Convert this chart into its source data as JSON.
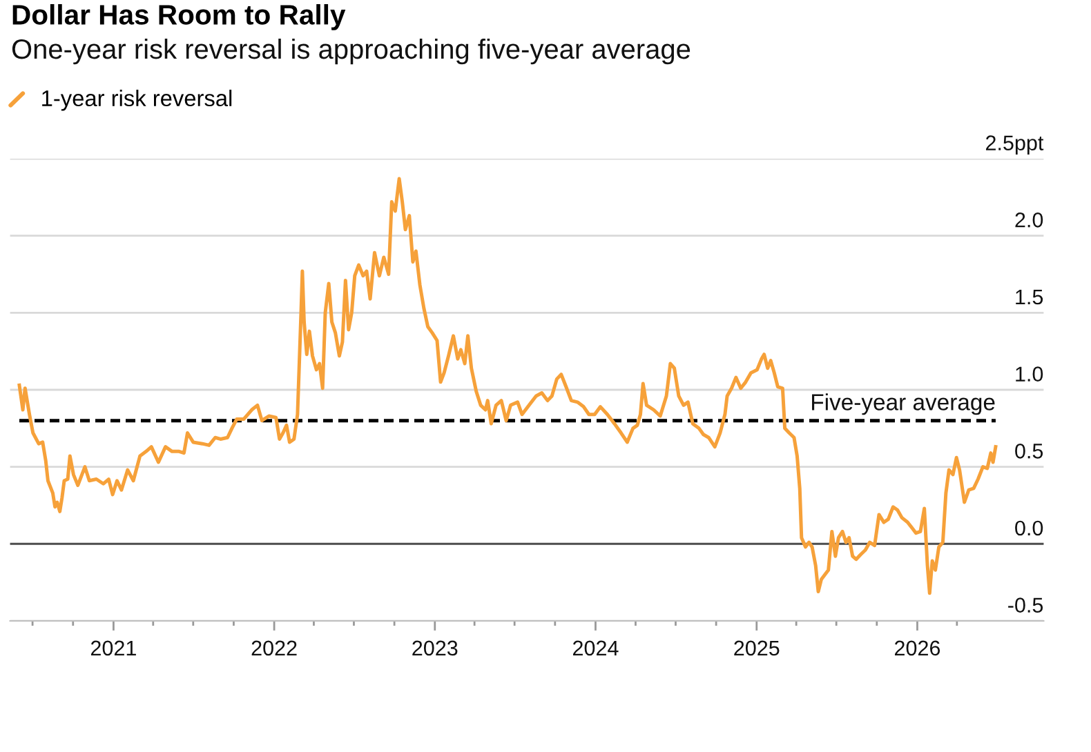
{
  "chart_data": {
    "type": "line",
    "title": "Dollar Has Room to Rally",
    "subtitle": "One-year risk reversal is approaching five-year average",
    "series": [
      {
        "name": "1-year risk reversal",
        "color": "#f6a13a",
        "x": [
          "2020-06-01",
          "2020-06-09",
          "2020-06-14",
          "2020-06-24",
          "2020-07-02",
          "2020-07-15",
          "2020-07-24",
          "2020-07-31",
          "2020-08-05",
          "2020-08-16",
          "2020-08-21",
          "2020-08-26",
          "2020-09-01",
          "2020-09-06",
          "2020-09-11",
          "2020-09-19",
          "2020-09-24",
          "2020-10-02",
          "2020-10-12",
          "2020-10-28",
          "2020-11-07",
          "2020-11-23",
          "2020-12-09",
          "2020-12-21",
          "2020-12-30",
          "2021-01-09",
          "2021-01-19",
          "2021-02-02",
          "2021-02-15",
          "2021-03-02",
          "2021-03-16",
          "2021-03-28",
          "2021-04-13",
          "2021-04-29",
          "2021-05-14",
          "2021-05-30",
          "2021-06-10",
          "2021-06-18",
          "2021-07-01",
          "2021-07-22",
          "2021-08-06",
          "2021-08-20",
          "2021-09-01",
          "2021-09-17",
          "2021-09-27",
          "2021-10-08",
          "2021-10-24",
          "2021-11-11",
          "2021-11-24",
          "2021-12-04",
          "2021-12-20",
          "2022-01-05",
          "2022-01-13",
          "2022-01-21",
          "2022-01-29",
          "2022-02-05",
          "2022-02-15",
          "2022-02-23",
          "2022-03-03",
          "2022-03-06",
          "2022-03-10",
          "2022-03-16",
          "2022-03-22",
          "2022-03-29",
          "2022-04-07",
          "2022-04-14",
          "2022-04-21",
          "2022-04-27",
          "2022-05-05",
          "2022-05-12",
          "2022-05-20",
          "2022-05-29",
          "2022-06-05",
          "2022-06-12",
          "2022-06-19",
          "2022-06-26",
          "2022-07-03",
          "2022-07-12",
          "2022-07-22",
          "2022-07-30",
          "2022-08-07",
          "2022-08-17",
          "2022-08-28",
          "2022-09-07",
          "2022-09-18",
          "2022-09-25",
          "2022-10-03",
          "2022-10-12",
          "2022-10-19",
          "2022-10-26",
          "2022-11-04",
          "2022-11-12",
          "2022-11-19",
          "2022-11-28",
          "2022-12-07",
          "2022-12-16",
          "2022-12-26",
          "2023-01-06",
          "2023-01-14",
          "2023-01-22",
          "2023-02-01",
          "2023-02-12",
          "2023-02-22",
          "2023-03-01",
          "2023-03-10",
          "2023-03-17",
          "2023-03-25",
          "2023-04-05",
          "2023-04-15",
          "2023-04-26",
          "2023-05-01",
          "2023-05-09",
          "2023-05-20",
          "2023-06-01",
          "2023-06-12",
          "2023-06-22",
          "2023-07-08",
          "2023-07-18",
          "2023-08-03",
          "2023-08-19",
          "2023-09-01",
          "2023-09-14",
          "2023-09-24",
          "2023-10-05",
          "2023-10-15",
          "2023-10-26",
          "2023-11-07",
          "2023-11-21",
          "2023-12-05",
          "2023-12-17",
          "2023-12-30",
          "2024-01-12",
          "2024-01-28",
          "2024-02-13",
          "2024-02-28",
          "2024-03-13",
          "2024-03-26",
          "2024-04-05",
          "2024-04-12",
          "2024-04-18",
          "2024-04-26",
          "2024-05-12",
          "2024-05-27",
          "2024-06-10",
          "2024-06-19",
          "2024-06-28",
          "2024-07-08",
          "2024-07-19",
          "2024-07-29",
          "2024-08-09",
          "2024-08-23",
          "2024-09-02",
          "2024-09-14",
          "2024-09-28",
          "2024-10-10",
          "2024-10-21",
          "2024-10-26",
          "2024-11-05",
          "2024-11-15",
          "2024-11-26",
          "2024-12-07",
          "2024-12-19",
          "2025-01-02",
          "2025-01-12",
          "2025-01-18",
          "2025-01-26",
          "2025-02-02",
          "2025-02-10",
          "2025-02-18",
          "2025-03-01",
          "2025-03-06",
          "2025-03-16",
          "2025-03-27",
          "2025-04-03",
          "2025-04-09",
          "2025-04-13",
          "2025-04-22",
          "2025-04-30",
          "2025-05-07",
          "2025-05-15",
          "2025-05-21",
          "2025-05-28",
          "2025-06-05",
          "2025-06-13",
          "2025-06-21",
          "2025-06-29",
          "2025-07-06",
          "2025-07-15",
          "2025-07-23",
          "2025-07-30",
          "2025-08-07",
          "2025-08-15",
          "2025-08-25",
          "2025-09-05",
          "2025-09-15",
          "2025-09-26",
          "2025-10-06",
          "2025-10-17",
          "2025-10-27",
          "2025-11-07",
          "2025-11-17",
          "2025-11-27",
          "2025-12-10",
          "2025-12-21",
          "2025-12-29",
          "2026-01-08",
          "2026-01-17",
          "2026-01-24",
          "2026-01-29",
          "2026-02-04",
          "2026-02-11",
          "2026-02-19",
          "2026-02-28",
          "2026-03-07",
          "2026-03-14",
          "2026-03-23",
          "2026-03-31",
          "2026-04-07",
          "2026-04-18",
          "2026-04-28",
          "2026-05-09",
          "2026-05-19",
          "2026-05-30",
          "2026-06-09",
          "2026-06-17",
          "2026-06-22",
          "2026-06-28"
        ],
        "values": [
          1.03,
          0.87,
          1.01,
          0.84,
          0.72,
          0.65,
          0.66,
          0.54,
          0.41,
          0.33,
          0.24,
          0.27,
          0.21,
          0.3,
          0.41,
          0.42,
          0.57,
          0.45,
          0.38,
          0.5,
          0.41,
          0.42,
          0.39,
          0.42,
          0.32,
          0.41,
          0.35,
          0.48,
          0.41,
          0.57,
          0.6,
          0.63,
          0.53,
          0.63,
          0.6,
          0.6,
          0.59,
          0.72,
          0.66,
          0.65,
          0.64,
          0.69,
          0.68,
          0.69,
          0.75,
          0.81,
          0.81,
          0.87,
          0.9,
          0.8,
          0.83,
          0.82,
          0.68,
          0.72,
          0.77,
          0.66,
          0.68,
          0.84,
          1.5,
          1.77,
          1.44,
          1.23,
          1.38,
          1.22,
          1.13,
          1.17,
          1.01,
          1.5,
          1.69,
          1.44,
          1.37,
          1.22,
          1.31,
          1.71,
          1.39,
          1.5,
          1.74,
          1.81,
          1.74,
          1.77,
          1.59,
          1.89,
          1.74,
          1.86,
          1.75,
          2.22,
          2.16,
          2.37,
          2.22,
          2.04,
          2.13,
          1.83,
          1.9,
          1.68,
          1.53,
          1.41,
          1.37,
          1.32,
          1.05,
          1.11,
          1.22,
          1.35,
          1.2,
          1.26,
          1.17,
          1.35,
          1.14,
          0.99,
          0.9,
          0.87,
          0.93,
          0.78,
          0.9,
          0.93,
          0.8,
          0.9,
          0.92,
          0.84,
          0.9,
          0.96,
          0.98,
          0.93,
          0.96,
          1.07,
          1.1,
          1.02,
          0.93,
          0.92,
          0.89,
          0.84,
          0.84,
          0.89,
          0.84,
          0.78,
          0.72,
          0.66,
          0.75,
          0.77,
          0.84,
          1.04,
          0.9,
          0.87,
          0.83,
          0.96,
          1.17,
          1.14,
          0.96,
          0.9,
          0.92,
          0.78,
          0.75,
          0.71,
          0.69,
          0.63,
          0.72,
          0.84,
          0.96,
          1.01,
          1.08,
          1.01,
          1.05,
          1.11,
          1.13,
          1.2,
          1.23,
          1.14,
          1.19,
          1.11,
          1.02,
          1.01,
          0.75,
          0.72,
          0.69,
          0.57,
          0.36,
          0.04,
          -0.02,
          0.01,
          -0.02,
          -0.14,
          -0.31,
          -0.23,
          -0.2,
          -0.17,
          0.08,
          -0.08,
          0.04,
          0.08,
          0.01,
          0.04,
          -0.08,
          -0.1,
          -0.07,
          -0.04,
          0.01,
          -0.01,
          0.19,
          0.14,
          0.16,
          0.24,
          0.22,
          0.17,
          0.14,
          0.1,
          0.07,
          0.08,
          0.23,
          -0.14,
          -0.32,
          -0.11,
          -0.17,
          -0.02,
          0.01,
          0.33,
          0.48,
          0.45,
          0.56,
          0.48,
          0.27,
          0.35,
          0.36,
          0.42,
          0.5,
          0.49,
          0.59,
          0.53,
          0.63
        ]
      }
    ],
    "xlim": [
      "2020-05-11",
      "2026-10-15"
    ],
    "xticks": [
      {
        "value": "2020-07-01",
        "label": null
      },
      {
        "value": "2020-10-01",
        "label": null
      },
      {
        "value": "2021-01-01",
        "label": "2021"
      },
      {
        "value": "2021-04-01",
        "label": null
      },
      {
        "value": "2021-07-01",
        "label": null
      },
      {
        "value": "2021-10-01",
        "label": null
      },
      {
        "value": "2022-01-01",
        "label": "2022"
      },
      {
        "value": "2022-04-01",
        "label": null
      },
      {
        "value": "2022-07-01",
        "label": null
      },
      {
        "value": "2022-10-01",
        "label": null
      },
      {
        "value": "2023-01-01",
        "label": "2023"
      },
      {
        "value": "2023-04-01",
        "label": null
      },
      {
        "value": "2023-07-01",
        "label": null
      },
      {
        "value": "2023-10-01",
        "label": null
      },
      {
        "value": "2024-01-01",
        "label": "2024"
      },
      {
        "value": "2024-04-01",
        "label": null
      },
      {
        "value": "2024-07-01",
        "label": null
      },
      {
        "value": "2024-10-01",
        "label": null
      },
      {
        "value": "2025-01-01",
        "label": "2025"
      },
      {
        "value": "2025-04-01",
        "label": null
      },
      {
        "value": "2025-07-01",
        "label": null
      },
      {
        "value": "2025-10-01",
        "label": null
      },
      {
        "value": "2026-01-01",
        "label": "2026"
      },
      {
        "value": "2026-04-01",
        "label": null
      }
    ],
    "ylim": [
      -0.5,
      2.5
    ],
    "yticks": [
      {
        "value": -0.5,
        "label": "-0.5"
      },
      {
        "value": 0,
        "label": "0.0"
      },
      {
        "value": 0.5,
        "label": "0.5"
      },
      {
        "value": 1,
        "label": "1.0"
      },
      {
        "value": 1.5,
        "label": "1.5"
      },
      {
        "value": 2,
        "label": "2.0"
      },
      {
        "value": 2.5,
        "label": "2.5ppt"
      }
    ],
    "ref_lines": [
      {
        "axis": "y",
        "value": 0.8,
        "label": "Five-year average",
        "color": "#000000",
        "line_style": "dashed"
      },
      {
        "axis": "y",
        "value": 0,
        "color": "#4d4d4d",
        "line_style": "solid"
      }
    ],
    "grid": "y",
    "legend": "top left"
  }
}
